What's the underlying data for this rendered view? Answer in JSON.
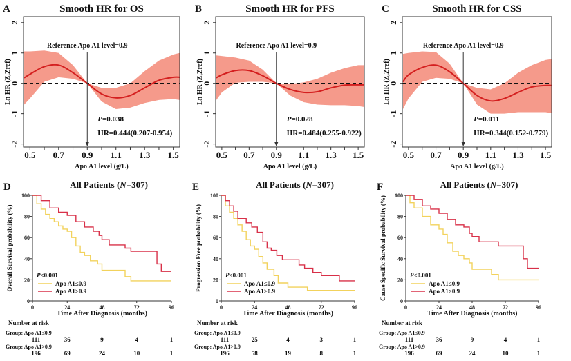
{
  "colors": {
    "band": "#f59a8b",
    "fit": "#d41f1f",
    "low_group": "#f2d25c",
    "high_group": "#d83048",
    "axis": "#222222"
  },
  "chart_data": [
    {
      "panel": "A",
      "type": "line",
      "title": "Smooth HR for OS",
      "xlabel": "Apo A1 level (g/L)",
      "ylabel": "Ln HR (Z,Zref)",
      "xlim": [
        0.455,
        1.545
      ],
      "ylim": [
        -2.1,
        2.2
      ],
      "xticks": [
        "0.5",
        "0.7",
        "0.9",
        "1.1",
        "1.3",
        "1.5"
      ],
      "yticks": [
        "-2",
        "-1",
        "0",
        "1",
        "2"
      ],
      "x": [
        0.46,
        0.5,
        0.6,
        0.7,
        0.8,
        0.9,
        1.0,
        1.1,
        1.2,
        1.3,
        1.4,
        1.5,
        1.545
      ],
      "fit": [
        0.18,
        0.3,
        0.55,
        0.6,
        0.35,
        0,
        -0.35,
        -0.48,
        -0.4,
        -0.15,
        0.1,
        0.2,
        0.2
      ],
      "lower": [
        -0.7,
        -0.5,
        0.05,
        0.2,
        0.15,
        0,
        -0.6,
        -0.85,
        -0.8,
        -0.65,
        -0.55,
        -0.52,
        -0.55
      ],
      "upper": [
        1.05,
        1.05,
        1.08,
        1.0,
        0.6,
        0,
        -0.15,
        -0.15,
        0.0,
        0.4,
        0.75,
        0.95,
        1.0
      ],
      "reference_label": "Reference Apo A1 level=0.9",
      "reference_x": 0.9,
      "p": {
        "symbol": "P",
        "text": "=0.038"
      },
      "hr": "HR=0.444(0.207-0.954)"
    },
    {
      "panel": "B",
      "type": "line",
      "title": "Smooth HR for PFS",
      "xlabel": "Apo A1 level (g/L)",
      "ylabel": "Ln HR (Z,Zref)",
      "xlim": [
        0.455,
        1.545
      ],
      "ylim": [
        -2.1,
        2.2
      ],
      "xticks": [
        "0.5",
        "0.7",
        "0.9",
        "1.1",
        "1.3",
        "1.5"
      ],
      "yticks": [
        "-2",
        "-1",
        "0",
        "1",
        "2"
      ],
      "x": [
        0.46,
        0.5,
        0.6,
        0.7,
        0.8,
        0.9,
        1.0,
        1.1,
        1.2,
        1.3,
        1.4,
        1.5,
        1.545
      ],
      "fit": [
        0.18,
        0.28,
        0.42,
        0.42,
        0.25,
        0,
        -0.2,
        -0.3,
        -0.28,
        -0.15,
        -0.06,
        -0.05,
        -0.05
      ],
      "lower": [
        -0.55,
        -0.3,
        0.02,
        0.05,
        0.05,
        0,
        -0.4,
        -0.62,
        -0.7,
        -0.72,
        -0.72,
        -0.75,
        -0.78
      ],
      "upper": [
        0.92,
        0.9,
        0.85,
        0.75,
        0.45,
        0,
        -0.02,
        0.03,
        0.15,
        0.35,
        0.5,
        0.6,
        0.6
      ],
      "reference_label": "Reference Apo A1 level=0.9",
      "reference_x": 0.9,
      "p": {
        "symbol": "P",
        "text": "=0.028"
      },
      "hr": "HR=0.484(0.255-0.922)"
    },
    {
      "panel": "C",
      "type": "line",
      "title": "Smooth HR for CSS",
      "xlabel": "Apo A1 level (g/L)",
      "ylabel": "Ln HR (Z,Zref)",
      "xlim": [
        0.455,
        1.545
      ],
      "ylim": [
        -2.1,
        2.2
      ],
      "xticks": [
        "0.5",
        "0.7",
        "0.9",
        "1.1",
        "1.3",
        "1.5"
      ],
      "yticks": [
        "-2",
        "-1",
        "0",
        "1",
        "2"
      ],
      "x": [
        0.46,
        0.5,
        0.6,
        0.7,
        0.8,
        0.9,
        1.0,
        1.1,
        1.2,
        1.3,
        1.4,
        1.5,
        1.545
      ],
      "fit": [
        0.05,
        0.28,
        0.52,
        0.6,
        0.38,
        0,
        -0.4,
        -0.58,
        -0.5,
        -0.3,
        -0.12,
        -0.07,
        -0.07
      ],
      "lower": [
        -0.85,
        -0.5,
        0.05,
        0.18,
        0.15,
        0,
        -0.7,
        -1.0,
        -1.0,
        -0.95,
        -0.95,
        -0.95,
        -0.98
      ],
      "upper": [
        0.97,
        1.0,
        1.05,
        1.03,
        0.65,
        0,
        -0.15,
        -0.2,
        0.0,
        0.35,
        0.6,
        0.77,
        0.8
      ],
      "reference_label": "Reference Apo A1 level=0.9",
      "reference_x": 0.9,
      "p": {
        "symbol": "P",
        "text": "=0.011"
      },
      "hr": "HR=0.344(0.152-0.779)"
    },
    {
      "panel": "D",
      "type": "line",
      "title": {
        "prefix": "All Patients (",
        "n": "N",
        "suffix": "=307)"
      },
      "xlabel": "Time After Diagnosis (months)",
      "ylabel": "Overall Survival probability (%)",
      "xlim": [
        0,
        96
      ],
      "ylim": [
        0,
        100
      ],
      "xticks": [
        "0",
        "24",
        "48",
        "72",
        "96"
      ],
      "yticks": [
        "0",
        "20",
        "40",
        "60",
        "80",
        "100"
      ],
      "p": {
        "symbol": "P",
        "text": "<0.001"
      },
      "series": [
        {
          "name": "Apo A1≤0.9",
          "t": [
            0,
            3,
            6,
            9,
            12,
            15,
            18,
            21,
            24,
            27,
            30,
            33,
            36,
            40,
            45,
            48,
            54,
            64,
            68,
            96
          ],
          "s": [
            100,
            92,
            87,
            82,
            78,
            75,
            71,
            68,
            66,
            60,
            52,
            46,
            43,
            38,
            35,
            29,
            29,
            23,
            19,
            19
          ]
        },
        {
          "name": "Apo A1>0.9",
          "t": [
            0,
            6,
            12,
            18,
            24,
            30,
            36,
            42,
            46,
            48,
            53,
            64,
            68,
            86,
            89,
            96
          ],
          "s": [
            100,
            95,
            88,
            84,
            81,
            75,
            70,
            66,
            62,
            58,
            53,
            50,
            47,
            35,
            28,
            28
          ]
        }
      ],
      "risk_table": {
        "header": "Number at risk",
        "groups": [
          {
            "label": "Group: Apo A1≤0.9",
            "values": [
              "111",
              "36",
              "9",
              "4",
              "1"
            ]
          },
          {
            "label": "Group: Apo A1>0.9",
            "values": [
              "196",
              "69",
              "24",
              "10",
              "1"
            ]
          }
        ]
      }
    },
    {
      "panel": "E",
      "type": "line",
      "title": {
        "prefix": "All Patients (",
        "n": "N",
        "suffix": "=307)"
      },
      "xlabel": "Time After Diagnosis (months)",
      "ylabel": "Progression Free probability (%)",
      "xlim": [
        0,
        96
      ],
      "ylim": [
        0,
        100
      ],
      "xticks": [
        "0",
        "24",
        "48",
        "72",
        "96"
      ],
      "yticks": [
        "0",
        "20",
        "40",
        "60",
        "80",
        "100"
      ],
      "p": {
        "symbol": "P",
        "text": "<0.001"
      },
      "series": [
        {
          "name": "Apo A1≤0.9",
          "t": [
            0,
            3,
            6,
            9,
            12,
            15,
            18,
            21,
            24,
            27,
            30,
            33,
            38,
            41,
            48,
            62,
            96
          ],
          "s": [
            100,
            90,
            84,
            78,
            72,
            66,
            58,
            52,
            49,
            42,
            36,
            30,
            24,
            17,
            13,
            10,
            10
          ]
        },
        {
          "name": "Apo A1>0.9",
          "t": [
            0,
            3,
            6,
            9,
            12,
            18,
            22,
            26,
            30,
            33,
            36,
            40,
            44,
            56,
            60,
            66,
            72,
            85,
            96
          ],
          "s": [
            100,
            95,
            90,
            85,
            78,
            74,
            70,
            65,
            56,
            50,
            48,
            43,
            39,
            34,
            31,
            27,
            24,
            19,
            19
          ]
        }
      ],
      "risk_table": {
        "header": "Number at risk",
        "groups": [
          {
            "label": "Group: Apo A1≤0.9",
            "values": [
              "111",
              "25",
              "4",
              "3",
              "1"
            ]
          },
          {
            "label": "Group: Apo A1>0.9",
            "values": [
              "196",
              "58",
              "19",
              "8",
              "1"
            ]
          }
        ]
      }
    },
    {
      "panel": "F",
      "type": "line",
      "title": {
        "prefix": "All Patients (",
        "n": "N",
        "suffix": "=307)"
      },
      "xlabel": "Time After Diagnosis (months)",
      "ylabel": "Cause Specific Survival probability (%)",
      "xlim": [
        0,
        96
      ],
      "ylim": [
        0,
        100
      ],
      "xticks": [
        "0",
        "24",
        "48",
        "72",
        "96"
      ],
      "yticks": [
        "0",
        "20",
        "40",
        "60",
        "80",
        "100"
      ],
      "p": {
        "symbol": "P",
        "text": "<0.001"
      },
      "series": [
        {
          "name": "Apo A1≤0.9",
          "t": [
            0,
            3,
            6,
            12,
            18,
            24,
            27,
            30,
            34,
            38,
            42,
            46,
            48,
            62,
            67,
            96
          ],
          "s": [
            100,
            93,
            88,
            80,
            72,
            68,
            63,
            55,
            47,
            43,
            40,
            36,
            30,
            25,
            20,
            20
          ]
        },
        {
          "name": "Apo A1>0.9",
          "t": [
            0,
            6,
            12,
            18,
            24,
            30,
            36,
            42,
            46,
            48,
            53,
            67,
            84,
            85,
            88,
            96
          ],
          "s": [
            100,
            96,
            90,
            87,
            83,
            77,
            72,
            70,
            64,
            61,
            56,
            52,
            52,
            40,
            31,
            31
          ]
        }
      ],
      "risk_table": {
        "header": "Number at risk",
        "groups": [
          {
            "label": "Group: Apo A1≤0.9",
            "values": [
              "111",
              "36",
              "9",
              "4",
              "1"
            ]
          },
          {
            "label": "Group: Apo A1>0.9",
            "values": [
              "196",
              "69",
              "24",
              "10",
              "1"
            ]
          }
        ]
      }
    }
  ]
}
